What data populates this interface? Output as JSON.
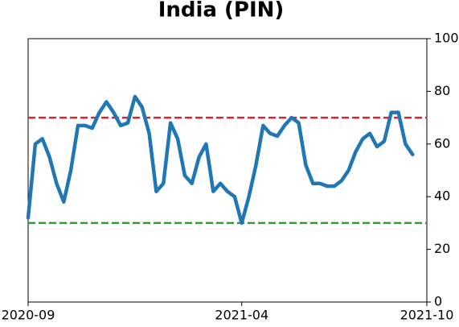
{
  "chart_data": {
    "type": "line",
    "title": "India (PIN)",
    "categories": [
      "2020-09",
      null,
      null,
      null,
      null,
      null,
      null,
      null,
      null,
      null,
      null,
      null,
      null,
      null,
      null,
      null,
      null,
      null,
      null,
      null,
      null,
      null,
      null,
      null,
      null,
      null,
      null,
      null,
      null,
      null,
      "2021-04",
      null,
      null,
      null,
      null,
      null,
      null,
      null,
      null,
      null,
      null,
      null,
      null,
      null,
      null,
      null,
      null,
      null,
      null,
      null,
      null,
      null,
      null,
      null,
      null,
      null,
      "2021-10"
    ],
    "series": [
      {
        "color": "#1f77b4",
        "values": [
          32,
          60,
          62,
          55,
          45,
          38,
          50,
          67,
          67,
          66,
          72,
          76,
          72,
          67,
          68,
          78,
          74,
          64,
          42,
          45,
          68,
          62,
          48,
          45,
          55,
          60,
          42,
          45,
          42,
          40,
          30,
          40,
          52,
          67,
          64,
          63,
          67,
          70,
          68,
          52,
          45,
          45,
          44,
          44,
          46,
          50,
          57,
          62,
          64,
          59,
          61,
          72,
          72,
          60,
          56,
          null,
          null
        ]
      }
    ],
    "ref_lines": [
      {
        "value": 70,
        "color": "#d62728"
      },
      {
        "value": 30,
        "color": "#2ca02c"
      }
    ],
    "ylim": [
      0,
      100
    ],
    "yticks": [
      0,
      20,
      40,
      60,
      80,
      100
    ]
  }
}
